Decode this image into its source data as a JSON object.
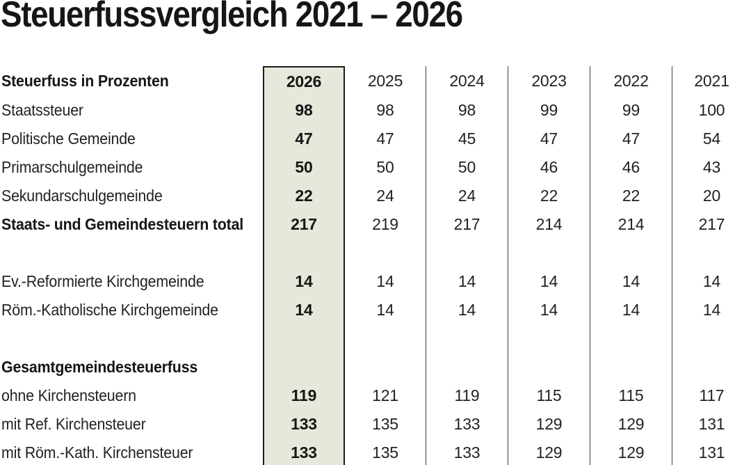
{
  "page": {
    "background": "#ffffff",
    "text_color": "#1a1a1a"
  },
  "chart_data": {
    "type": "table",
    "title": "Steuerfussvergleich 2021 – 2026",
    "columns": [
      "Steuerfuss in Prozenten",
      "2026",
      "2025",
      "2024",
      "2023",
      "2022",
      "2021"
    ],
    "highlighted_column": "2026",
    "highlight_bg": "#e7e8db",
    "highlight_border": "#1c1c1c",
    "divider_color": "#3f3f3f",
    "rows": [
      {
        "label": "Staatssteuer",
        "bold": false,
        "values": [
          "98",
          "98",
          "98",
          "99",
          "99",
          "100"
        ]
      },
      {
        "label": "Politische Gemeinde",
        "bold": false,
        "values": [
          "47",
          "47",
          "45",
          "47",
          "47",
          "54"
        ]
      },
      {
        "label": "Primarschulgemeinde",
        "bold": false,
        "values": [
          "50",
          "50",
          "50",
          "46",
          "46",
          "43"
        ]
      },
      {
        "label": "Sekundarschulgemeinde",
        "bold": false,
        "values": [
          "22",
          "24",
          "24",
          "22",
          "22",
          "20"
        ]
      },
      {
        "label": "Staats- und Gemeindesteuern total",
        "bold": true,
        "values": [
          "217",
          "219",
          "217",
          "214",
          "214",
          "217"
        ]
      },
      {
        "label": "",
        "bold": false,
        "values": [
          "",
          "",
          "",
          "",
          "",
          ""
        ]
      },
      {
        "label": "Ev.-Reformierte Kirchgemeinde",
        "bold": false,
        "values": [
          "14",
          "14",
          "14",
          "14",
          "14",
          "14"
        ]
      },
      {
        "label": "Röm.-Katholische Kirchgemeinde",
        "bold": false,
        "values": [
          "14",
          "14",
          "14",
          "14",
          "14",
          "14"
        ]
      },
      {
        "label": "",
        "bold": false,
        "values": [
          "",
          "",
          "",
          "",
          "",
          ""
        ]
      },
      {
        "label": "Gesamtgemeindesteuerfuss",
        "bold": true,
        "values": [
          "",
          "",
          "",
          "",
          "",
          ""
        ]
      },
      {
        "label": "ohne Kirchensteuern",
        "bold": false,
        "values": [
          "119",
          "121",
          "119",
          "115",
          "115",
          "117"
        ]
      },
      {
        "label": "mit Ref. Kirchensteuer",
        "bold": false,
        "values": [
          "133",
          "135",
          "133",
          "129",
          "129",
          "131"
        ]
      },
      {
        "label": "mit Röm.-Kath. Kirchensteuer",
        "bold": false,
        "values": [
          "133",
          "135",
          "133",
          "129",
          "129",
          "131"
        ]
      }
    ]
  }
}
